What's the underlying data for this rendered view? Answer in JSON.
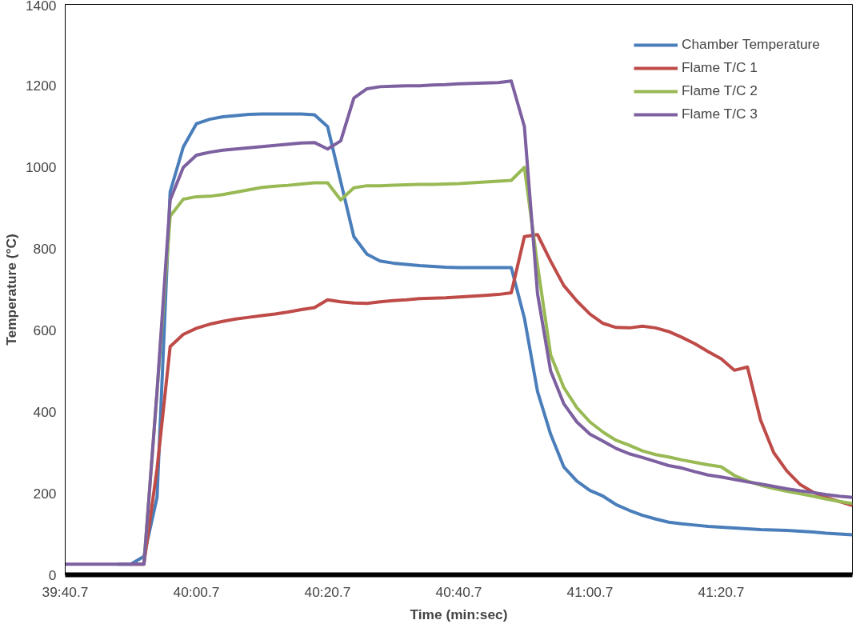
{
  "chart_data": {
    "type": "line",
    "xlabel": "Time (min:sec)",
    "ylabel": "Temperature (°C)",
    "categories": [
      "39:40.7",
      null,
      null,
      null,
      null,
      null,
      null,
      null,
      null,
      null,
      "40:00.7",
      null,
      null,
      null,
      null,
      null,
      null,
      null,
      null,
      null,
      "40:20.7",
      null,
      null,
      null,
      null,
      null,
      null,
      null,
      null,
      null,
      "40:40.7",
      null,
      null,
      null,
      null,
      null,
      null,
      null,
      null,
      null,
      "41:00.7",
      null,
      null,
      null,
      null,
      null,
      null,
      null,
      null,
      null,
      "41:20.7",
      null,
      null,
      null,
      null,
      null,
      null,
      null,
      null,
      null,
      null
    ],
    "ylim": [
      0,
      1400
    ],
    "yticks": [
      0,
      200,
      400,
      600,
      800,
      1000,
      1200,
      1400
    ],
    "grid": false,
    "legend": "top right",
    "line_style": "solid",
    "marker": "none",
    "series": [
      {
        "name": "Chamber Temperature",
        "color": "#4a7ebb",
        "values": [
          null,
          null,
          null,
          null,
          26,
          26,
          45,
          190,
          940,
          1050,
          1107,
          1118,
          1124,
          1127,
          1130,
          1131,
          1131,
          1131,
          1131,
          1129,
          1100,
          965,
          830,
          787,
          770,
          765,
          762,
          759,
          757,
          755,
          754,
          754,
          754,
          754,
          754,
          630,
          450,
          345,
          265,
          230,
          207,
          193,
          172,
          158,
          146,
          137,
          129,
          125,
          122,
          119,
          117,
          115,
          113,
          111,
          110,
          109,
          107,
          105,
          102,
          100,
          98
        ]
      },
      {
        "name": "Flame T/C 1",
        "color": "#be4b48",
        "values": [
          null,
          null,
          null,
          null,
          null,
          26,
          26,
          260,
          560,
          590,
          605,
          615,
          622,
          628,
          632,
          636,
          640,
          645,
          651,
          656,
          675,
          670,
          667,
          666,
          670,
          673,
          675,
          678,
          679,
          680,
          682,
          684,
          686,
          688,
          692,
          830,
          835,
          770,
          710,
          672,
          640,
          617,
          607,
          606,
          610,
          606,
          597,
          583,
          567,
          548,
          530,
          502,
          510,
          380,
          300,
          255,
          222,
          203,
          190,
          180,
          170
        ]
      },
      {
        "name": "Flame T/C 2",
        "color": "#98b954",
        "values": [
          null,
          null,
          null,
          null,
          null,
          null,
          26,
          450,
          880,
          922,
          928,
          929,
          933,
          939,
          945,
          951,
          954,
          956,
          959,
          962,
          962,
          920,
          950,
          955,
          955,
          956,
          957,
          958,
          958,
          959,
          960,
          962,
          964,
          966,
          968,
          1000,
          760,
          540,
          460,
          410,
          375,
          350,
          330,
          318,
          304,
          295,
          289,
          282,
          276,
          270,
          265,
          244,
          230,
          220,
          212,
          205,
          199,
          193,
          186,
          180,
          175
        ]
      },
      {
        "name": "Flame T/C 3",
        "color": "#7d60a0",
        "values": [
          26,
          26,
          26,
          26,
          26,
          26,
          26,
          450,
          920,
          1000,
          1030,
          1037,
          1042,
          1045,
          1048,
          1051,
          1054,
          1057,
          1060,
          1061,
          1045,
          1065,
          1170,
          1193,
          1198,
          1199,
          1200,
          1200,
          1202,
          1203,
          1205,
          1206,
          1207,
          1208,
          1212,
          1100,
          690,
          500,
          420,
          375,
          345,
          328,
          310,
          297,
          288,
          278,
          268,
          262,
          253,
          245,
          240,
          234,
          228,
          223,
          217,
          211,
          206,
          202,
          197,
          193,
          190
        ]
      }
    ]
  }
}
